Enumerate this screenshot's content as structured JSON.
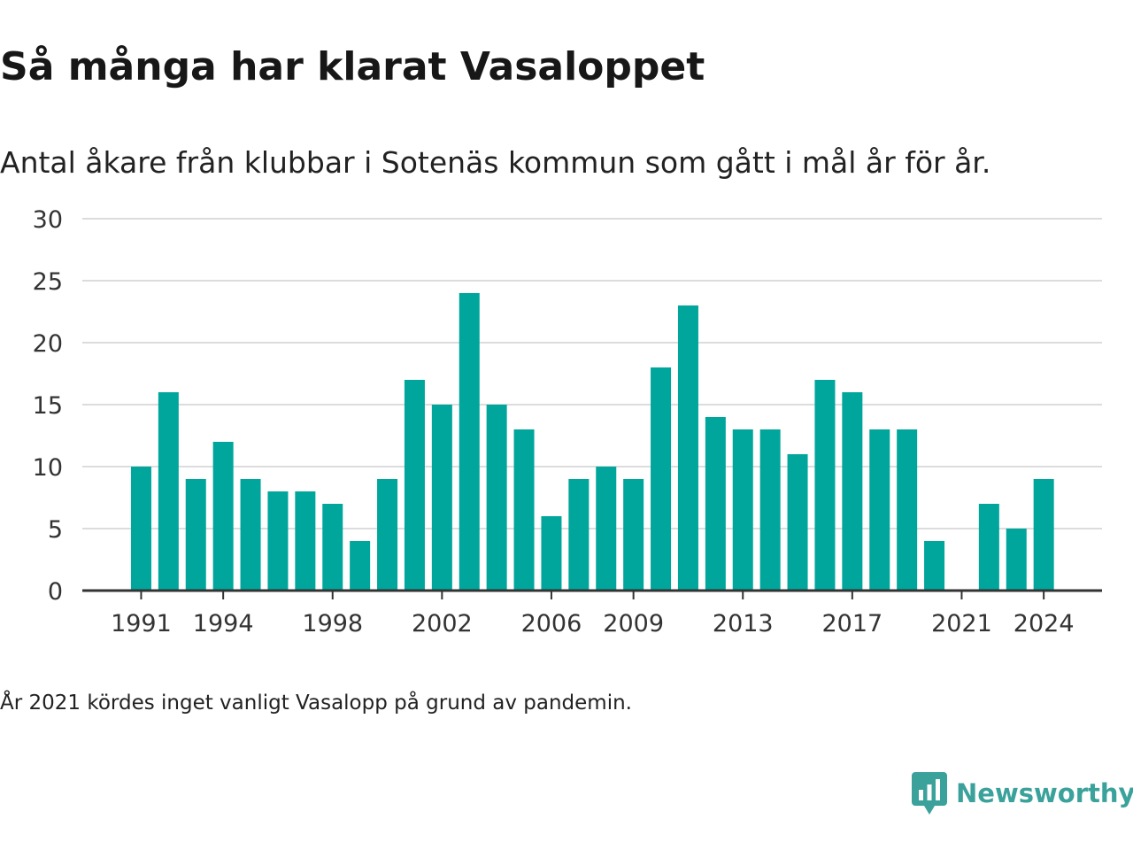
{
  "header": {
    "title": "Så många har klarat Vasaloppet",
    "subtitle": "Antal åkare från klubbar i Sotenäs kommun som gått i mål år för år."
  },
  "footer": {
    "note": "År 2021 kördes inget vanligt Vasalopp på grund av pandemin.",
    "brand": "Newsworthy",
    "brand_icon": "chart-bubble-icon"
  },
  "colors": {
    "bar": "#00A69C",
    "grid": "#dcdcdc",
    "axis": "#333333",
    "brand": "#3aa19b"
  },
  "chart_data": {
    "type": "bar",
    "title": "Så många har klarat Vasaloppet",
    "subtitle": "Antal åkare från klubbar i Sotenäs kommun som gått i mål år för år.",
    "xlabel": "",
    "ylabel": "",
    "categories": [
      1991,
      1992,
      1993,
      1994,
      1995,
      1996,
      1997,
      1998,
      1999,
      2000,
      2001,
      2002,
      2003,
      2004,
      2005,
      2006,
      2007,
      2008,
      2009,
      2010,
      2011,
      2012,
      2013,
      2014,
      2015,
      2016,
      2017,
      2018,
      2019,
      2020,
      2021,
      2022,
      2023,
      2024
    ],
    "values": [
      10,
      16,
      9,
      12,
      9,
      8,
      8,
      7,
      4,
      9,
      17,
      15,
      24,
      15,
      13,
      6,
      9,
      10,
      9,
      18,
      23,
      14,
      13,
      13,
      11,
      17,
      16,
      13,
      13,
      4,
      0,
      7,
      5,
      9
    ],
    "x_ticks": [
      1991,
      1994,
      1998,
      2002,
      2006,
      2009,
      2013,
      2017,
      2021,
      2024
    ],
    "y_ticks": [
      0,
      5,
      10,
      15,
      20,
      25,
      30
    ],
    "ylim": [
      0,
      30
    ],
    "grid": true,
    "legend": "none"
  }
}
